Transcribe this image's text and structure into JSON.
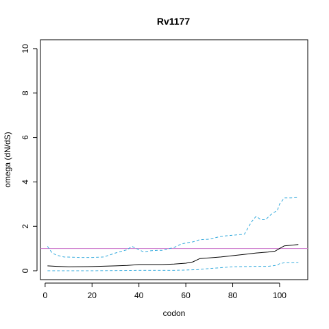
{
  "chart_data": {
    "type": "line",
    "title": "Rv1177",
    "xlabel": "codon",
    "ylabel": "omega (dN/dS)",
    "xlim": [
      -2,
      112
    ],
    "ylim": [
      -0.4,
      10.4
    ],
    "xticks": [
      0,
      20,
      40,
      60,
      80,
      100
    ],
    "yticks": [
      0,
      2,
      4,
      6,
      8,
      10
    ],
    "grid": false,
    "reference_line": {
      "y": 1,
      "color": "#cc77cc"
    },
    "series": [
      {
        "style": "solid",
        "color": "#000000",
        "x": [
          1,
          5,
          10,
          20,
          30,
          35,
          40,
          50,
          55,
          60,
          63,
          66,
          70,
          75,
          80,
          85,
          90,
          95,
          98,
          100,
          102,
          105,
          108
        ],
        "y": [
          0.22,
          0.2,
          0.18,
          0.19,
          0.22,
          0.24,
          0.28,
          0.28,
          0.3,
          0.34,
          0.4,
          0.55,
          0.58,
          0.62,
          0.68,
          0.74,
          0.8,
          0.84,
          0.88,
          1.0,
          1.12,
          1.15,
          1.18
        ]
      },
      {
        "style": "dashed",
        "color": "#33aadd",
        "x": [
          1,
          3,
          5,
          8,
          15,
          20,
          25,
          30,
          35,
          37,
          40,
          42,
          45,
          48,
          50,
          55,
          58,
          60,
          63,
          66,
          70,
          75,
          78,
          80,
          85,
          88,
          90,
          92,
          94,
          97,
          99,
          100,
          102,
          105,
          108
        ],
        "y": [
          1.1,
          0.8,
          0.7,
          0.62,
          0.6,
          0.6,
          0.62,
          0.8,
          0.95,
          1.1,
          0.95,
          0.85,
          0.9,
          0.92,
          0.92,
          1.05,
          1.2,
          1.25,
          1.3,
          1.4,
          1.42,
          1.55,
          1.58,
          1.6,
          1.65,
          2.2,
          2.45,
          2.3,
          2.3,
          2.6,
          2.7,
          3.0,
          3.28,
          3.28,
          3.3
        ]
      },
      {
        "style": "dashed",
        "color": "#33aadd",
        "x": [
          1,
          20,
          40,
          55,
          65,
          70,
          75,
          80,
          90,
          95,
          99,
          100,
          102,
          108
        ],
        "y": [
          0.0,
          0.0,
          0.02,
          0.02,
          0.05,
          0.1,
          0.14,
          0.18,
          0.2,
          0.2,
          0.25,
          0.32,
          0.36,
          0.37
        ]
      }
    ]
  }
}
